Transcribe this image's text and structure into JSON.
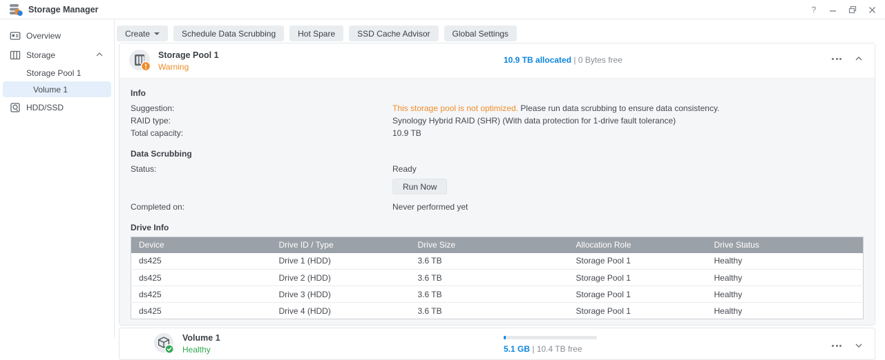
{
  "colors": {
    "accent_blue": "#0d85dd",
    "warning_orange": "#ef8d2a",
    "healthy_green": "#2fa84f",
    "table_header_bg": "#9ba1a8"
  },
  "window": {
    "title": "Storage Manager",
    "help_glyph": "?"
  },
  "sidebar": {
    "items": [
      {
        "label": "Overview"
      },
      {
        "label": "Storage"
      },
      {
        "label": "Storage Pool 1"
      },
      {
        "label": "Volume 1"
      },
      {
        "label": "HDD/SSD"
      }
    ]
  },
  "toolbar": {
    "create_label": "Create",
    "buttons": [
      "Schedule Data Scrubbing",
      "Hot Spare",
      "SSD Cache Advisor",
      "Global Settings"
    ]
  },
  "pool": {
    "title": "Storage Pool 1",
    "status": "Warning",
    "allocated": "10.9 TB allocated",
    "separator": "|",
    "free": "0 Bytes free",
    "info": {
      "heading": "Info",
      "suggestion_label": "Suggestion:",
      "suggestion_warning": "This storage pool is not optimized.",
      "suggestion_rest": " Please run data scrubbing to ensure data consistency.",
      "raid_label": "RAID type:",
      "raid_value": "Synology Hybrid RAID (SHR) (With data protection for 1-drive fault tolerance)",
      "capacity_label": "Total capacity:",
      "capacity_value": "10.9 TB"
    },
    "scrubbing": {
      "heading": "Data Scrubbing",
      "status_label": "Status:",
      "status_value": "Ready",
      "run_button": "Run Now",
      "completed_label": "Completed on:",
      "completed_value": "Never performed yet"
    },
    "drive_info": {
      "heading": "Drive Info",
      "columns": [
        "Device",
        "Drive ID / Type",
        "Drive Size",
        "Allocation Role",
        "Drive Status"
      ],
      "rows": [
        [
          "ds425",
          "Drive 1 (HDD)",
          "3.6 TB",
          "Storage Pool 1",
          "Healthy"
        ],
        [
          "ds425",
          "Drive 2 (HDD)",
          "3.6 TB",
          "Storage Pool 1",
          "Healthy"
        ],
        [
          "ds425",
          "Drive 3 (HDD)",
          "3.6 TB",
          "Storage Pool 1",
          "Healthy"
        ],
        [
          "ds425",
          "Drive 4 (HDD)",
          "3.6 TB",
          "Storage Pool 1",
          "Healthy"
        ]
      ]
    }
  },
  "volume": {
    "title": "Volume 1",
    "status": "Healthy",
    "used": "5.1 GB",
    "separator": "|",
    "free": "10.4 TB free",
    "usage_percent": 2
  }
}
